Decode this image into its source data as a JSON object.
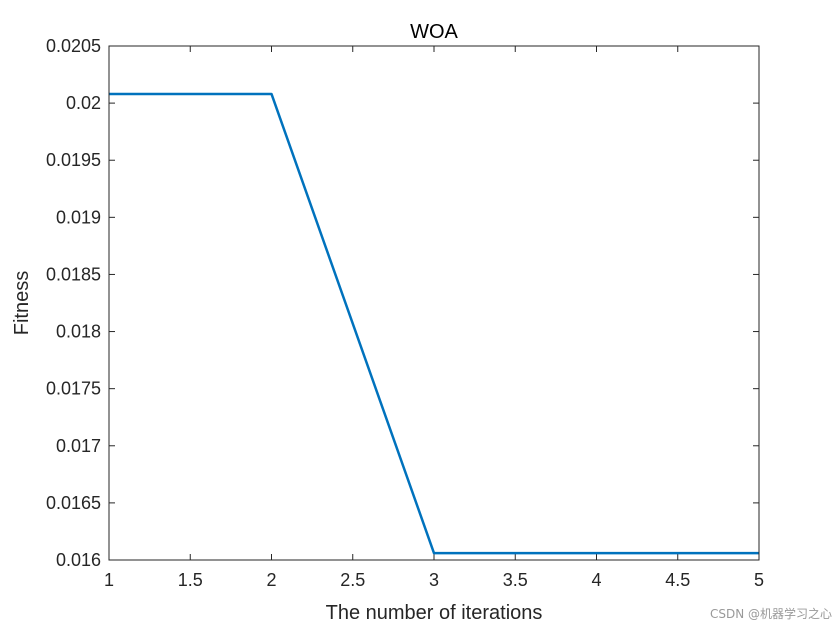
{
  "chart_data": {
    "type": "line",
    "title": "WOA",
    "xlabel": "The number of iterations",
    "ylabel": "Fitness",
    "xlim": [
      1,
      5
    ],
    "ylim": [
      0.016,
      0.0205
    ],
    "x_ticks": [
      "1",
      "1.5",
      "2",
      "2.5",
      "3",
      "3.5",
      "4",
      "4.5",
      "5"
    ],
    "y_ticks": [
      "0.016",
      "0.0165",
      "0.017",
      "0.0175",
      "0.018",
      "0.0185",
      "0.019",
      "0.0195",
      "0.02",
      "0.0205"
    ],
    "grid": false,
    "series": [
      {
        "x": [
          1,
          2,
          3,
          4,
          5
        ],
        "values": [
          0.02008,
          0.02008,
          0.01606,
          0.01606,
          0.01606
        ],
        "color": "#0072BD"
      }
    ]
  },
  "watermark": "CSDN @机器学习之心"
}
